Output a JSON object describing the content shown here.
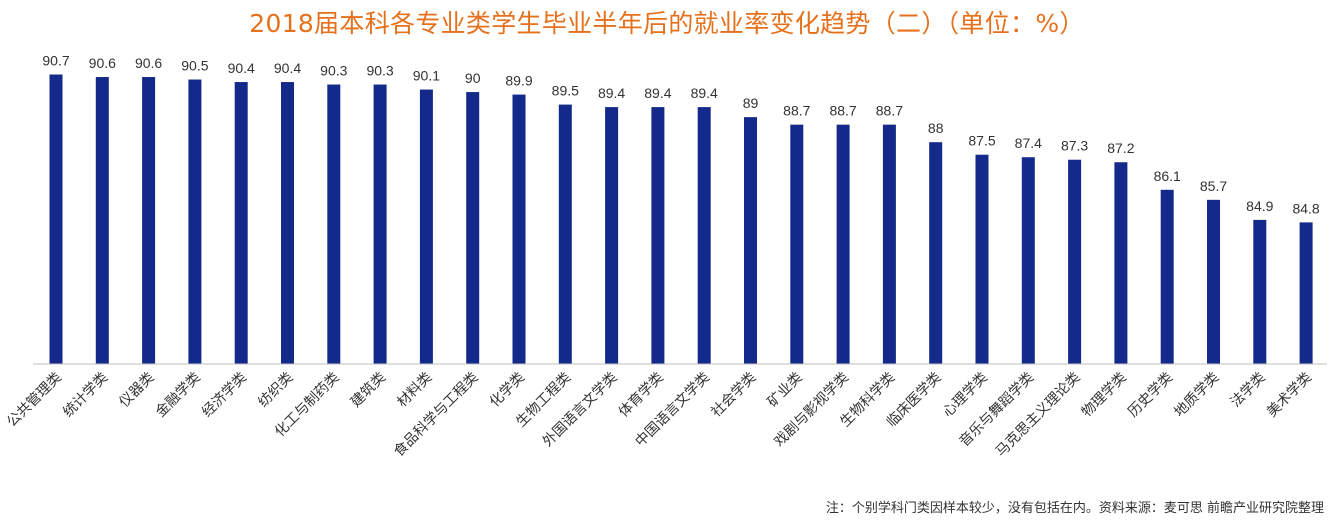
{
  "chart_data": {
    "type": "bar",
    "title": "2018届本科各专业类学生毕业半年后的就业率变化趋势（二）（单位：%）",
    "categories": [
      "公共管理类",
      "统计学类",
      "仪器类",
      "金融学类",
      "经济学类",
      "纺织类",
      "化工与制药类",
      "建筑类",
      "材料类",
      "食品科学与工程类",
      "化学类",
      "生物工程类",
      "外国语言文学类",
      "体育学类",
      "中国语言文学类",
      "社会学类",
      "矿业类",
      "戏剧与影视学类",
      "生物科学类",
      "临床医学类",
      "心理学类",
      "音乐与舞蹈学类",
      "马克思主义理论类",
      "物理学类",
      "历史学类",
      "地质学类",
      "法学类",
      "美术学类"
    ],
    "values": [
      90.7,
      90.6,
      90.6,
      90.5,
      90.4,
      90.4,
      90.3,
      90.3,
      90.1,
      90,
      89.9,
      89.5,
      89.4,
      89.4,
      89.4,
      89,
      88.7,
      88.7,
      88.7,
      88,
      87.5,
      87.4,
      87.3,
      87.2,
      86.1,
      85.7,
      84.9,
      84.8
    ],
    "value_labels": [
      "90.7",
      "90.6",
      "90.6",
      "90.5",
      "90.4",
      "90.4",
      "90.3",
      "90.3",
      "90.1",
      "90",
      "89.9",
      "89.5",
      "89.4",
      "89.4",
      "89.4",
      "89",
      "88.7",
      "88.7",
      "88.7",
      "88",
      "87.5",
      "87.4",
      "87.3",
      "87.2",
      "86.1",
      "85.7",
      "84.9",
      "84.8"
    ],
    "xlabel": "",
    "ylabel": "",
    "ylim": [
      79.15,
      91.0
    ],
    "grid": false,
    "legend": "none",
    "colors": {
      "bar": "#132a8a",
      "title": "#e6711d",
      "axis": "#bfbfbf",
      "text": "#333333"
    }
  },
  "footer": {
    "note": "注：个别学科门类因样本较少，没有包括在内。资料来源：麦可思 前瞻产业研究院整理"
  }
}
